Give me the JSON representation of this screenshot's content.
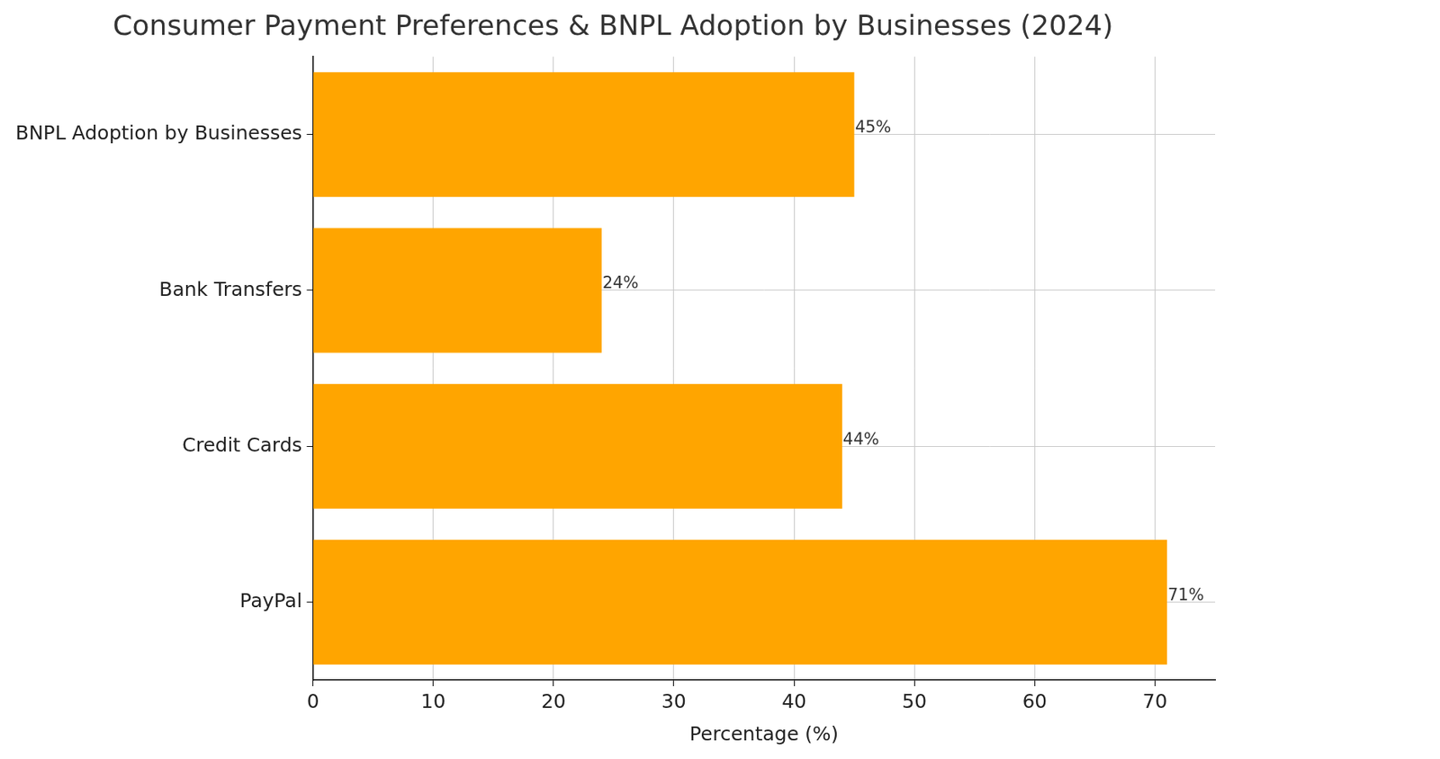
{
  "chart_data": {
    "type": "bar",
    "orientation": "horizontal",
    "title": "Consumer Payment Preferences & BNPL Adoption by Businesses (2024)",
    "x_label": "Percentage (%)",
    "categories": [
      "BNPL Adoption by Businesses",
      "Bank Transfers",
      "Credit Cards",
      "PayPal"
    ],
    "values": [
      45,
      24,
      44,
      71
    ],
    "value_labels": [
      "45%",
      "24%",
      "44%",
      "71%"
    ],
    "data_labels": true,
    "color": "#ffa500",
    "xlim": [
      0,
      75
    ],
    "xticks": [
      0,
      10,
      20,
      30,
      40,
      50,
      60,
      70
    ],
    "grid": true
  }
}
